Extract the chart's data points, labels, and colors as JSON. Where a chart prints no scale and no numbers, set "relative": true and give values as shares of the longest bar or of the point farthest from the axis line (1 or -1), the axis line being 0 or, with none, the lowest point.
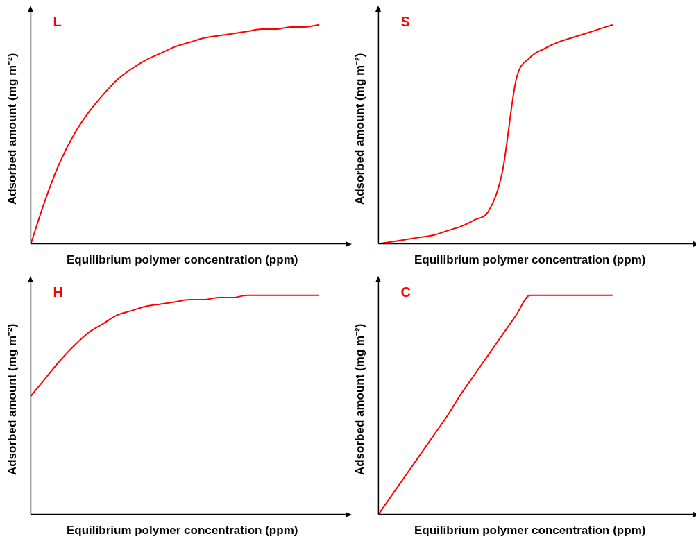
{
  "chart_data": [
    {
      "type": "line",
      "title": "L",
      "xlabel": "Equilibrium polymer concentration (ppm)",
      "ylabel": "Adsorbed amount (mg m⁻²)",
      "relative": true,
      "color": "#ff0000",
      "categories": [
        null,
        null,
        null,
        null,
        null,
        null,
        null,
        null,
        null,
        null,
        null,
        null,
        null,
        null,
        null,
        null,
        null,
        null,
        null,
        null,
        null,
        null
      ],
      "values": [
        0,
        0.2,
        0.37,
        0.5,
        0.6,
        0.68,
        0.75,
        0.8,
        0.84,
        0.87,
        0.9,
        0.92,
        0.94,
        0.95,
        0.96,
        0.97,
        0.98,
        0.98,
        0.99,
        0.99,
        1,
        null
      ]
    },
    {
      "type": "line",
      "title": "S",
      "xlabel": "Equilibrium polymer concentration (ppm)",
      "ylabel": "Adsorbed amount (mg m⁻²)",
      "relative": true,
      "color": "#ff0000",
      "categories": [
        null,
        null,
        null,
        null,
        null,
        null,
        null,
        null,
        null,
        null,
        null,
        null,
        null,
        null,
        null,
        null,
        null,
        null,
        null,
        null,
        null,
        null,
        null
      ],
      "values": [
        0,
        0.01,
        0.02,
        0.03,
        0.04,
        0.06,
        0.08,
        0.11,
        0.15,
        0.33,
        0.75,
        0.85,
        0.89,
        0.92,
        0.94,
        0.96,
        0.98,
        1,
        null,
        null,
        null,
        null,
        null
      ]
    },
    {
      "type": "line",
      "title": "H",
      "xlabel": "Equilibrium polymer concentration (ppm)",
      "ylabel": "Adsorbed amount (mg m⁻²)",
      "relative": true,
      "color": "#ff0000",
      "categories": [
        null,
        null,
        null,
        null,
        null,
        null,
        null,
        null,
        null,
        null,
        null,
        null,
        null,
        null,
        null,
        null,
        null,
        null,
        null,
        null,
        null,
        null
      ],
      "values": [
        0.54,
        0.62,
        0.7,
        0.77,
        0.83,
        0.87,
        0.91,
        0.93,
        0.95,
        0.96,
        0.97,
        0.98,
        0.98,
        0.99,
        0.99,
        1,
        1,
        1,
        1,
        1,
        1,
        null
      ]
    },
    {
      "type": "line",
      "title": "C",
      "xlabel": "Equilibrium polymer concentration (ppm)",
      "ylabel": "Adsorbed amount (mg m⁻²)",
      "relative": true,
      "color": "#ff0000",
      "categories": [
        null,
        null,
        null,
        null,
        null,
        null,
        null,
        null,
        null,
        null,
        null,
        null,
        null,
        null,
        null,
        null,
        null,
        null,
        null,
        null,
        null,
        null,
        null
      ],
      "values": [
        0,
        0.09,
        0.18,
        0.27,
        0.36,
        0.45,
        0.55,
        0.64,
        0.73,
        0.82,
        0.91,
        1,
        1,
        1,
        1,
        1,
        1,
        1,
        null,
        null,
        null,
        null,
        null
      ]
    }
  ]
}
